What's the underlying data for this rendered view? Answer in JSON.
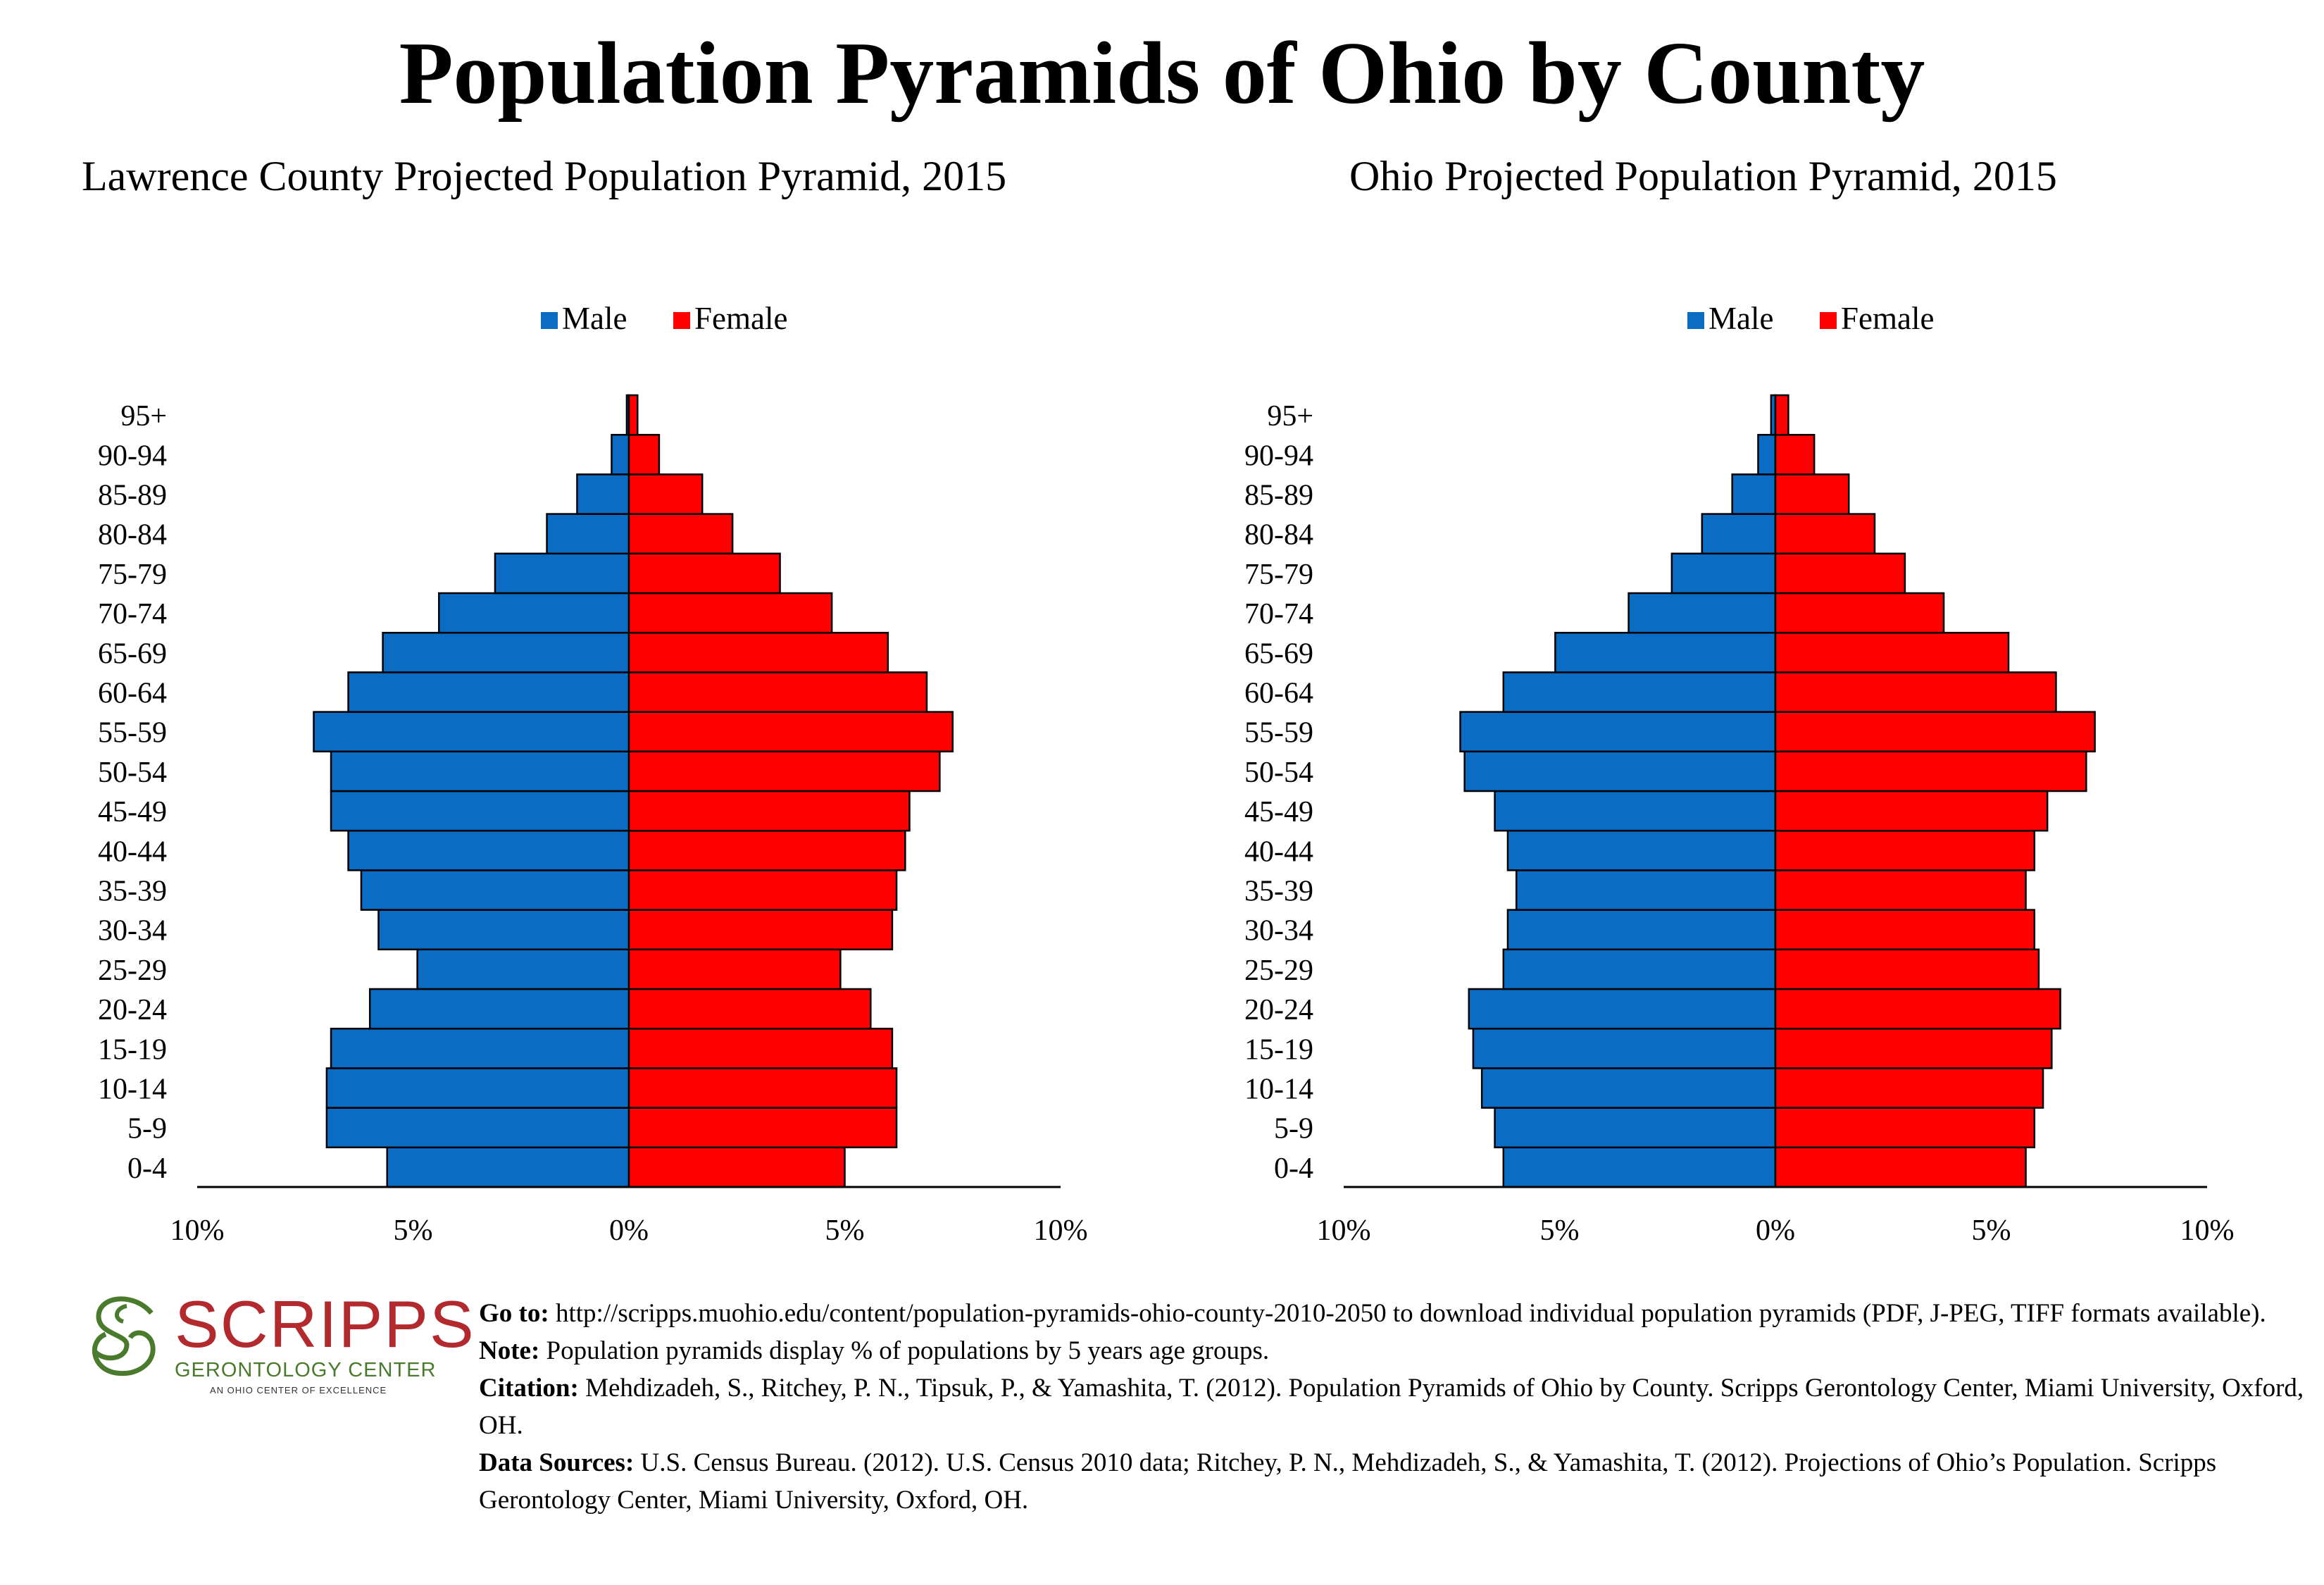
{
  "page": {
    "title": "Population Pyramids of Ohio by County"
  },
  "footer": {
    "goto_label": "Go to:",
    "goto_text": " http://scripps.muohio.edu/content/population-pyramids-ohio-county-2010-2050 to download individual population pyramids (PDF, J-PEG, TIFF formats available).",
    "note_label": "Note:",
    "note_text": " Population pyramids display % of populations by 5 years age groups.",
    "citation_label": "Citation:",
    "citation_text": " Mehdizadeh, S., Ritchey, P. N., Tipsuk, P., & Yamashita, T. (2012). Population Pyramids of Ohio by County. Scripps Gerontology Center, Miami University, Oxford, OH.",
    "sources_label": "Data Sources:",
    "sources_text": " U.S. Census Bureau. (2012). U.S. Census 2010 data; Ritchey, P. N., Mehdizadeh, S., & Yamashita, T. (2012). Projections of Ohio’s Population. Scripps Gerontology Center, Miami University, Oxford, OH."
  },
  "logo": {
    "name": "SCRIPPS",
    "subtitle": "GERONTOLOGY CENTER",
    "tagline": "AN OHIO CENTER OF EXCELLENCE",
    "colors": {
      "name": "#b22a2e",
      "icon": "#4a7a2c"
    }
  },
  "colors": {
    "male": "#0b6cc4",
    "female": "#ff0000",
    "outline": "#000000"
  },
  "chart_data": [
    {
      "type": "bar",
      "orientation": "horizontal-pyramid",
      "title": "Lawrence County Projected Population Pyramid, 2015",
      "categories": [
        "0-4",
        "5-9",
        "10-14",
        "15-19",
        "20-24",
        "25-29",
        "30-34",
        "35-39",
        "40-44",
        "45-49",
        "50-54",
        "55-59",
        "60-64",
        "65-69",
        "70-74",
        "75-79",
        "80-84",
        "85-89",
        "90-94",
        "95+"
      ],
      "series": [
        {
          "name": "Male",
          "color": "#0b6cc4",
          "values": [
            5.6,
            7.0,
            7.0,
            6.9,
            6.0,
            4.9,
            5.8,
            6.2,
            6.5,
            6.9,
            6.9,
            7.3,
            6.5,
            5.7,
            4.4,
            3.1,
            1.9,
            1.2,
            0.4,
            0.05
          ]
        },
        {
          "name": "Female",
          "color": "#ff0000",
          "values": [
            5.0,
            6.2,
            6.2,
            6.1,
            5.6,
            4.9,
            6.1,
            6.2,
            6.4,
            6.5,
            7.2,
            7.5,
            6.9,
            6.0,
            4.7,
            3.5,
            2.4,
            1.7,
            0.7,
            0.2
          ]
        }
      ],
      "x_tick_labels": [
        "10%",
        "5%",
        "0%",
        "5%",
        "10%"
      ],
      "xlim": [
        -10,
        10
      ],
      "legend": "top-center",
      "grid": false
    },
    {
      "type": "bar",
      "orientation": "horizontal-pyramid",
      "title": "Ohio Projected Population Pyramid, 2015",
      "categories": [
        "0-4",
        "5-9",
        "10-14",
        "15-19",
        "20-24",
        "25-29",
        "30-34",
        "35-39",
        "40-44",
        "45-49",
        "50-54",
        "55-59",
        "60-64",
        "65-69",
        "70-74",
        "75-79",
        "80-84",
        "85-89",
        "90-94",
        "95+"
      ],
      "series": [
        {
          "name": "Male",
          "color": "#0b6cc4",
          "values": [
            6.3,
            6.5,
            6.8,
            7.0,
            7.1,
            6.3,
            6.2,
            6.0,
            6.2,
            6.5,
            7.2,
            7.3,
            6.3,
            5.1,
            3.4,
            2.4,
            1.7,
            1.0,
            0.4,
            0.1
          ]
        },
        {
          "name": "Female",
          "color": "#ff0000",
          "values": [
            5.8,
            6.0,
            6.2,
            6.4,
            6.6,
            6.1,
            6.0,
            5.8,
            6.0,
            6.3,
            7.2,
            7.4,
            6.5,
            5.4,
            3.9,
            3.0,
            2.3,
            1.7,
            0.9,
            0.3
          ]
        }
      ],
      "x_tick_labels": [
        "10%",
        "5%",
        "0%",
        "5%",
        "10%"
      ],
      "xlim": [
        -10,
        10
      ],
      "legend": "top-center",
      "grid": false
    }
  ]
}
